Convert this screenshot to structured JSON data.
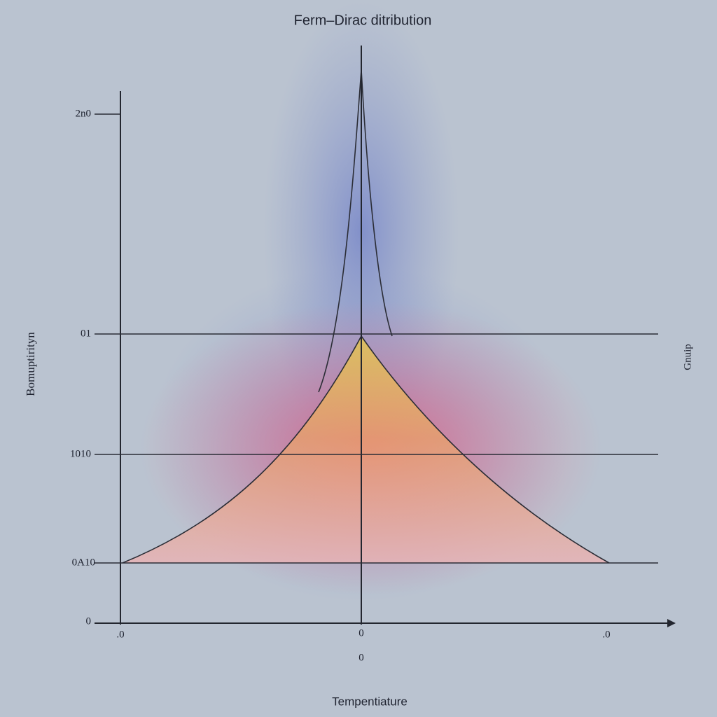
{
  "title": "Ferm–Dirac ditribution",
  "y_axis_label": "Bomuptirityn",
  "right_label": "Gnuip",
  "x_axis_label": "Tempentiature",
  "y_tick_labels": [
    "2n0",
    "01",
    "1010",
    "0A10",
    "0"
  ],
  "x_tick_labels": [
    ".0",
    "0",
    ".0"
  ],
  "x_sublabel": "0"
}
